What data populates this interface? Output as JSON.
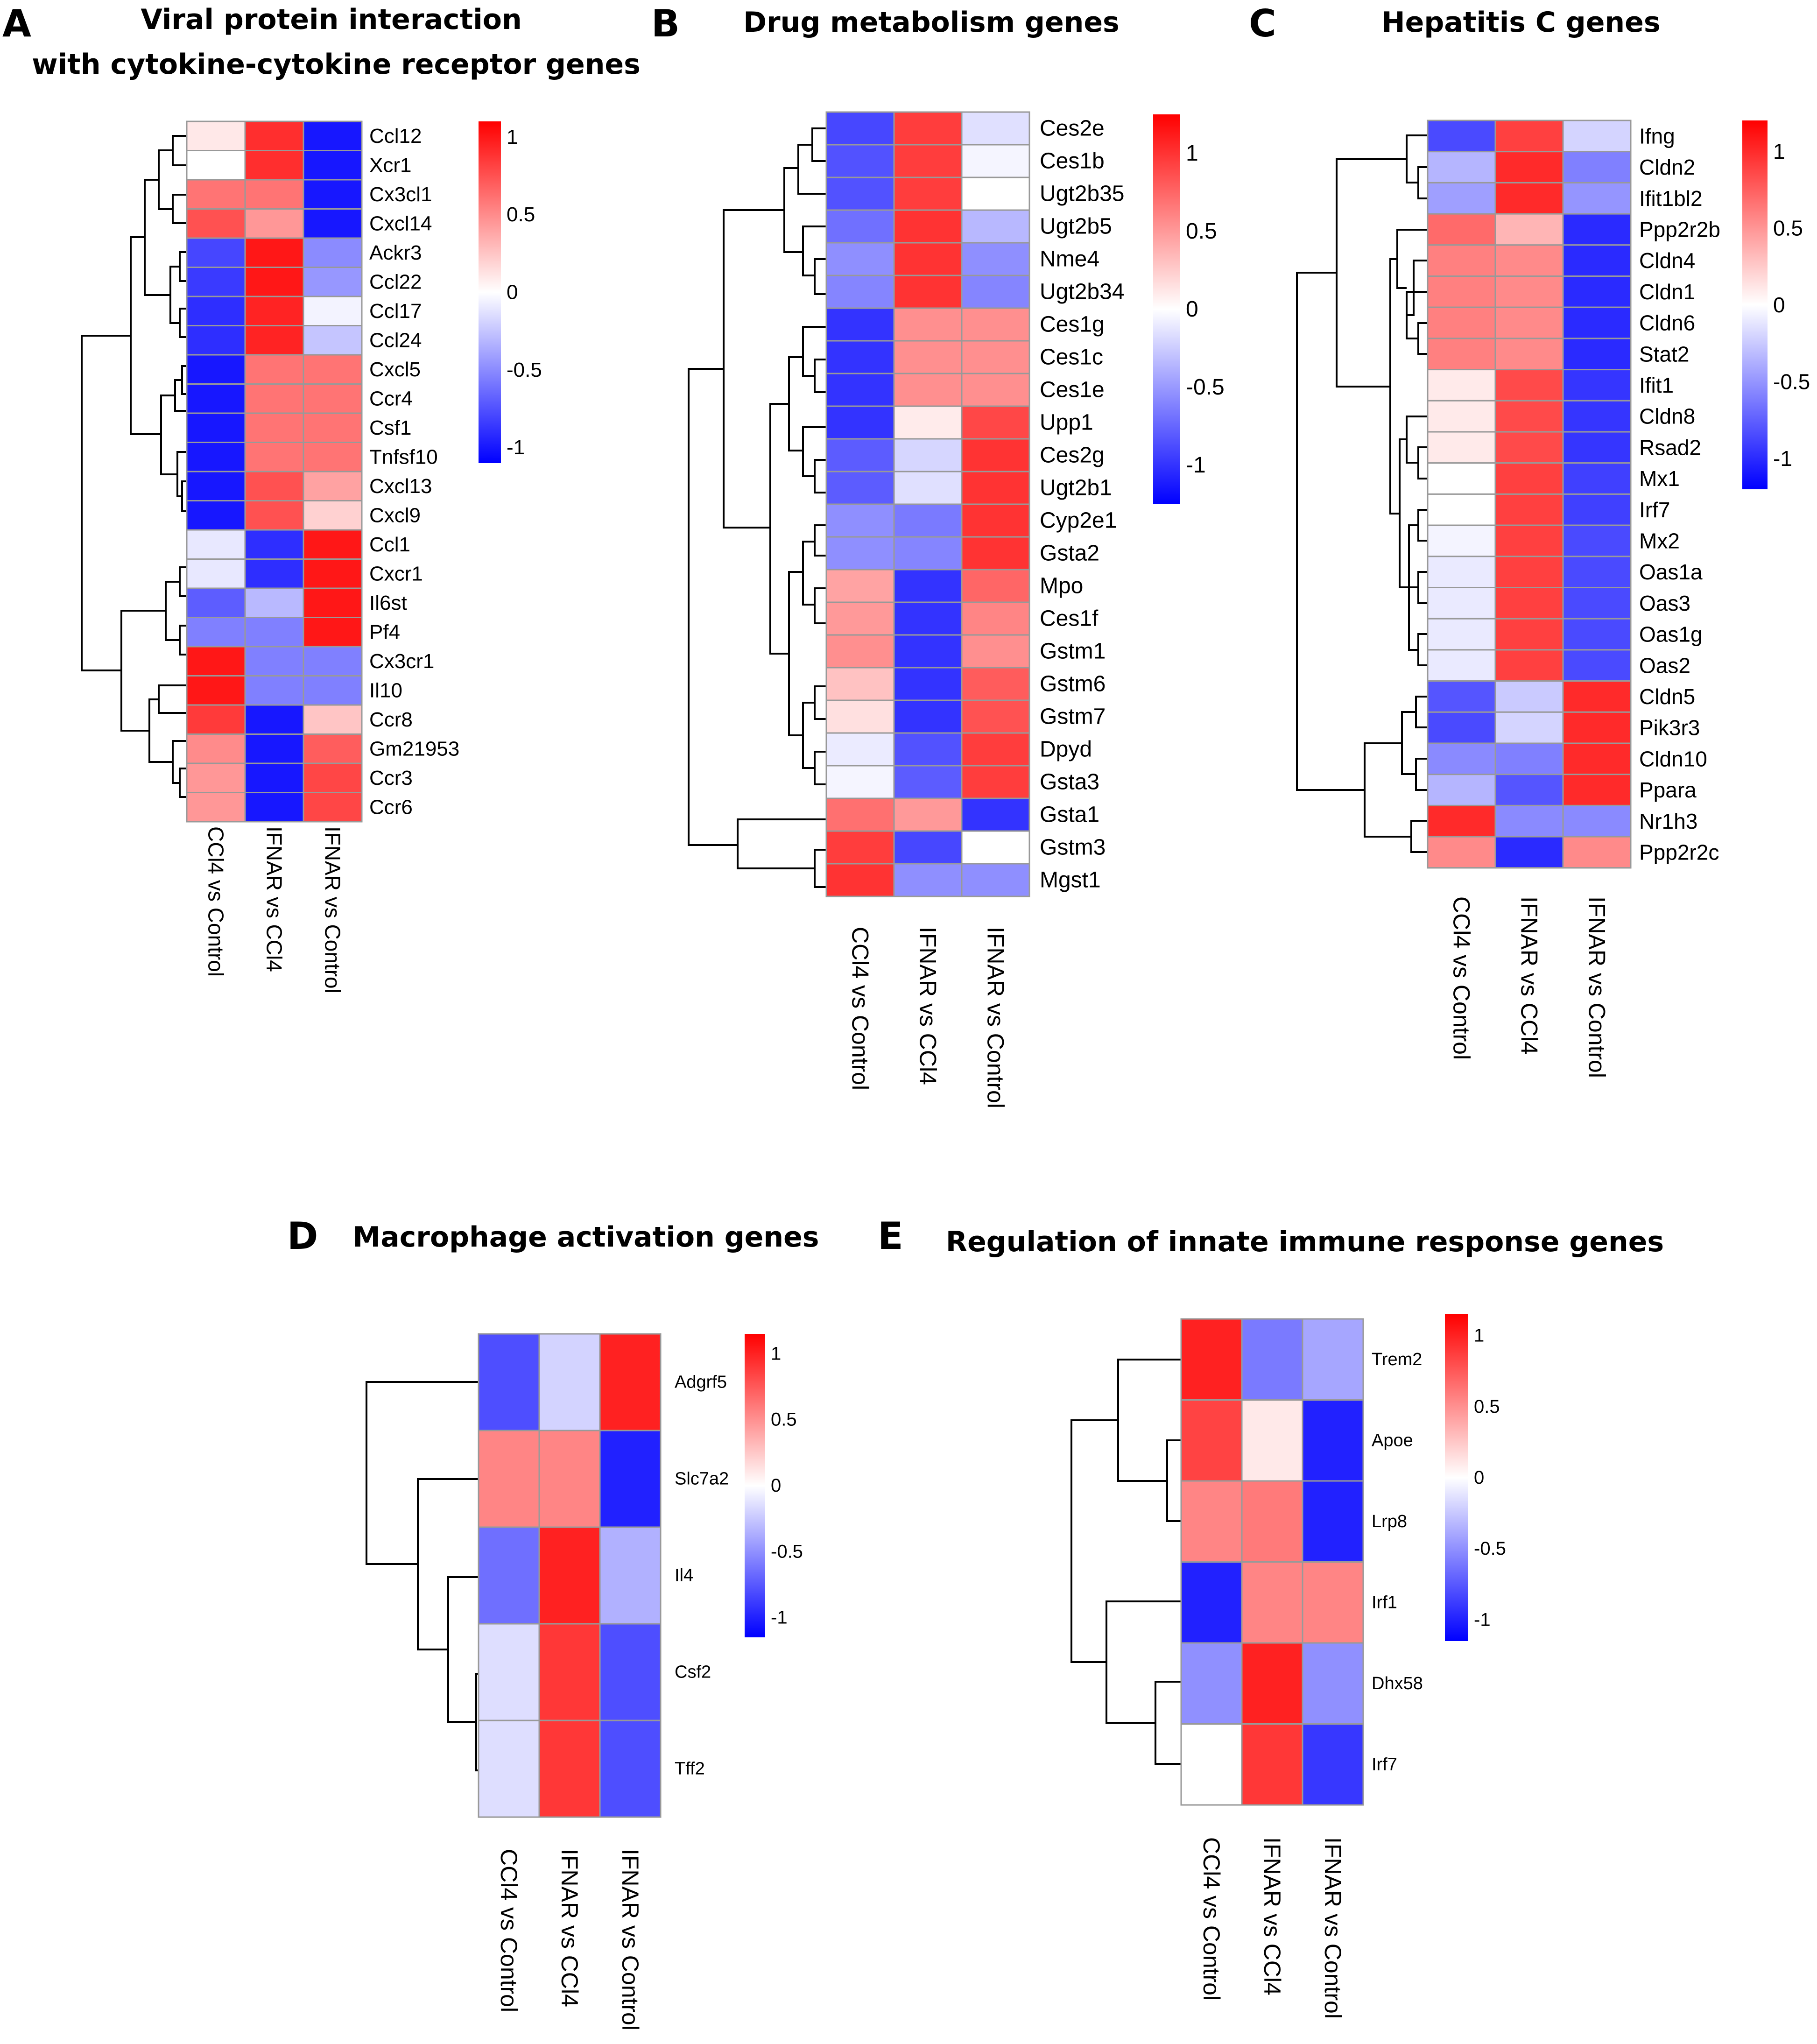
{
  "colors": {
    "low": "#0000ff",
    "mid": "#ffffff",
    "high": "#ff0000",
    "grid": "#999999"
  },
  "chart_data": [
    {
      "type": "heatmap",
      "panel": "A",
      "title_lines": [
        "Viral protein interaction",
        "with cytokine-cytokine receptor genes"
      ],
      "columns": [
        "CCl4 vs Control",
        "IFNAR vs CCl4",
        "IFNAR vs Control"
      ],
      "rows": [
        "Ccl12",
        "Xcr1",
        "Cx3cl1",
        "Cxcl14",
        "Ackr3",
        "Ccl22",
        "Ccl17",
        "Ccl24",
        "Cxcl5",
        "Ccr4",
        "Csf1",
        "Tnfsf10",
        "Cxcl13",
        "Cxcl9",
        "Ccl1",
        "Cxcr1",
        "Il6st",
        "Pf4",
        "Cx3cr1",
        "Il10",
        "Ccr8",
        "Gm21953",
        "Ccr3",
        "Ccr6"
      ],
      "values": [
        [
          0.1,
          0.9,
          -1.0
        ],
        [
          0.0,
          0.9,
          -1.0
        ],
        [
          0.6,
          0.6,
          -1.0
        ],
        [
          0.75,
          0.45,
          -1.0
        ],
        [
          -0.8,
          1.0,
          -0.5
        ],
        [
          -0.85,
          1.0,
          -0.45
        ],
        [
          -0.9,
          0.95,
          -0.05
        ],
        [
          -0.9,
          0.95,
          -0.25
        ],
        [
          -1.0,
          0.6,
          0.6
        ],
        [
          -1.0,
          0.6,
          0.6
        ],
        [
          -1.0,
          0.6,
          0.6
        ],
        [
          -1.0,
          0.6,
          0.6
        ],
        [
          -1.0,
          0.75,
          0.4
        ],
        [
          -1.0,
          0.75,
          0.2
        ],
        [
          -0.1,
          -0.9,
          1.0
        ],
        [
          -0.1,
          -0.9,
          1.0
        ],
        [
          -0.7,
          -0.3,
          1.0
        ],
        [
          -0.55,
          -0.55,
          1.0
        ],
        [
          1.0,
          -0.55,
          -0.55
        ],
        [
          1.0,
          -0.55,
          -0.55
        ],
        [
          0.85,
          -1.0,
          0.25
        ],
        [
          0.5,
          -1.0,
          0.7
        ],
        [
          0.45,
          -1.0,
          0.8
        ],
        [
          0.45,
          -1.0,
          0.8
        ]
      ],
      "legend_ticks": [
        "1",
        "0.5",
        "0",
        "-0.5",
        "-1"
      ],
      "scale_range": [
        -1.1,
        1.1
      ]
    },
    {
      "type": "heatmap",
      "panel": "B",
      "title_lines": [
        "Drug metabolism genes"
      ],
      "columns": [
        "CCl4 vs Control",
        "IFNAR vs CCl4",
        "IFNAR vs Control"
      ],
      "rows": [
        "Ces2e",
        "Ces1b",
        "Ugt2b35",
        "Ugt2b5",
        "Nme4",
        "Ugt2b34",
        "Ces1g",
        "Ces1c",
        "Ces1e",
        "Upp1",
        "Ces2g",
        "Ugt2b1",
        "Cyp2e1",
        "Gsta2",
        "Mpo",
        "Ces1f",
        "Gstm1",
        "Gstm6",
        "Gstm7",
        "Dpyd",
        "Gsta3",
        "Gsta1",
        "Gstm3",
        "Mgst1"
      ],
      "values": [
        [
          -0.9,
          0.95,
          -0.15
        ],
        [
          -0.85,
          0.95,
          -0.05
        ],
        [
          -0.85,
          0.95,
          0.0
        ],
        [
          -0.7,
          1.0,
          -0.35
        ],
        [
          -0.55,
          1.0,
          -0.55
        ],
        [
          -0.6,
          1.0,
          -0.6
        ],
        [
          -1.0,
          0.55,
          0.55
        ],
        [
          -1.0,
          0.55,
          0.55
        ],
        [
          -1.0,
          0.55,
          0.55
        ],
        [
          -1.0,
          0.1,
          0.9
        ],
        [
          -0.8,
          -0.2,
          1.0
        ],
        [
          -0.8,
          -0.15,
          1.0
        ],
        [
          -0.55,
          -0.65,
          1.0
        ],
        [
          -0.55,
          -0.6,
          1.0
        ],
        [
          0.45,
          -1.0,
          0.75
        ],
        [
          0.5,
          -1.0,
          0.6
        ],
        [
          0.55,
          -1.0,
          0.55
        ],
        [
          0.3,
          -1.0,
          0.8
        ],
        [
          0.15,
          -1.0,
          0.85
        ],
        [
          -0.1,
          -0.85,
          0.95
        ],
        [
          -0.05,
          -0.8,
          0.95
        ],
        [
          0.7,
          0.5,
          -1.0
        ],
        [
          0.95,
          -0.9,
          0.0
        ],
        [
          1.0,
          -0.55,
          -0.55
        ]
      ],
      "legend_ticks": [
        "1",
        "0.5",
        "0",
        "-0.5",
        "-1"
      ],
      "scale_range": [
        -1.25,
        1.25
      ]
    },
    {
      "type": "heatmap",
      "panel": "C",
      "title_lines": [
        "Hepatitis C genes"
      ],
      "columns": [
        "CCl4 vs Control",
        "IFNAR vs CCl4",
        "IFNAR vs Control"
      ],
      "rows": [
        "Ifng",
        "Cldn2",
        "Ifit1bl2",
        "Ppp2r2b",
        "Cldn4",
        "Cldn1",
        "Cldn6",
        "Stat2",
        "Ifit1",
        "Cldn8",
        "Rsad2",
        "Mx1",
        "Irf7",
        "Mx2",
        "Oas1a",
        "Oas3",
        "Oas1g",
        "Oas2",
        "Cldn5",
        "Pik3r3",
        "Cldn10",
        "Ppara",
        "Nr1h3",
        "Ppp2r2c"
      ],
      "values": [
        [
          -0.85,
          0.9,
          -0.2
        ],
        [
          -0.35,
          1.0,
          -0.6
        ],
        [
          -0.45,
          1.0,
          -0.5
        ],
        [
          0.7,
          0.35,
          -1.0
        ],
        [
          0.6,
          0.55,
          -1.0
        ],
        [
          0.6,
          0.55,
          -1.0
        ],
        [
          0.6,
          0.55,
          -1.0
        ],
        [
          0.6,
          0.55,
          -1.0
        ],
        [
          0.1,
          0.85,
          -0.95
        ],
        [
          0.1,
          0.85,
          -0.95
        ],
        [
          0.1,
          0.85,
          -0.95
        ],
        [
          0.0,
          0.9,
          -0.9
        ],
        [
          0.0,
          0.9,
          -0.9
        ],
        [
          -0.05,
          0.9,
          -0.85
        ],
        [
          -0.1,
          0.9,
          -0.85
        ],
        [
          -0.1,
          0.9,
          -0.85
        ],
        [
          -0.1,
          0.9,
          -0.85
        ],
        [
          -0.1,
          0.9,
          -0.85
        ],
        [
          -0.8,
          -0.25,
          1.0
        ],
        [
          -0.85,
          -0.2,
          1.0
        ],
        [
          -0.55,
          -0.6,
          1.0
        ],
        [
          -0.35,
          -0.8,
          1.0
        ],
        [
          1.0,
          -0.55,
          -0.55
        ],
        [
          0.55,
          -1.0,
          0.55
        ]
      ],
      "legend_ticks": [
        "1",
        "0.5",
        "0",
        "-0.5",
        "-1"
      ],
      "scale_range": [
        -1.2,
        1.2
      ]
    },
    {
      "type": "heatmap",
      "panel": "D",
      "title_lines": [
        "Macrophage activation genes"
      ],
      "columns": [
        "CCl4 vs Control",
        "IFNAR vs CCl4",
        "IFNAR vs Control"
      ],
      "rows": [
        "Adgrf5",
        "Slc7a2",
        "Il4",
        "Csf2",
        "Tff2"
      ],
      "values": [
        [
          -0.8,
          -0.2,
          1.0
        ],
        [
          0.55,
          0.55,
          -1.0
        ],
        [
          -0.65,
          1.0,
          -0.35
        ],
        [
          -0.15,
          0.9,
          -0.8
        ],
        [
          -0.15,
          0.9,
          -0.8
        ]
      ],
      "legend_ticks": [
        "1",
        "0.5",
        "0",
        "-0.5",
        "-1"
      ],
      "scale_range": [
        -1.15,
        1.15
      ]
    },
    {
      "type": "heatmap",
      "panel": "E",
      "title_lines": [
        "Regulation of innate immune response genes"
      ],
      "columns": [
        "CCl4 vs Control",
        "IFNAR vs CCl4",
        "IFNAR vs Control"
      ],
      "rows": [
        "Trem2",
        "Apoe",
        "Lrp8",
        "Irf1",
        "Dhx58",
        "Irf7"
      ],
      "values": [
        [
          1.0,
          -0.6,
          -0.4
        ],
        [
          0.85,
          0.1,
          -1.0
        ],
        [
          0.55,
          0.6,
          -1.0
        ],
        [
          -1.0,
          0.55,
          0.55
        ],
        [
          -0.5,
          1.0,
          -0.5
        ],
        [
          0.0,
          0.9,
          -0.9
        ]
      ],
      "legend_ticks": [
        "1",
        "0.5",
        "0",
        "-0.5",
        "-1"
      ],
      "scale_range": [
        -1.15,
        1.15
      ]
    }
  ]
}
